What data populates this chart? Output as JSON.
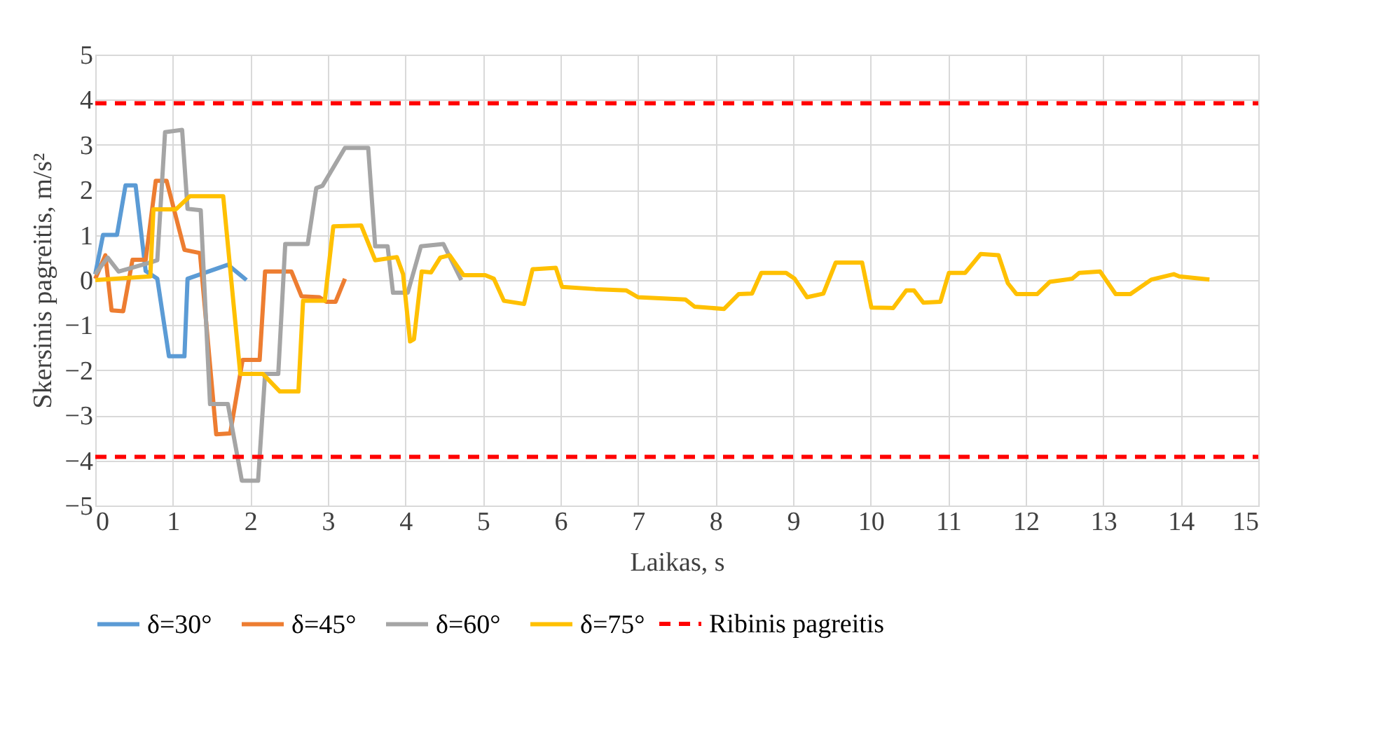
{
  "chart_data": {
    "type": "line",
    "xlabel": "Laikas, s",
    "ylabel": "Skersinis pagreitis, m/s²",
    "xlim": [
      0,
      15
    ],
    "xticks": [
      0,
      1,
      2,
      3,
      4,
      5,
      6,
      7,
      8,
      9,
      10,
      11,
      12,
      13,
      14,
      15
    ],
    "ylim": [
      -5,
      5
    ],
    "yticks": [
      -5,
      -4,
      -3,
      -2,
      -1,
      0,
      1,
      2,
      3,
      4,
      5
    ],
    "grid": true,
    "legend": "bottom",
    "marker": "none",
    "line_style": "solid",
    "series": [
      {
        "name": "δ=30°",
        "color": "#5b9bd5",
        "x": [
          0,
          0.1,
          0.28,
          0.39,
          0.52,
          0.65,
          0.8,
          0.95,
          1.15,
          1.19,
          1.71,
          1.95
        ],
        "values": [
          0.13,
          1.0,
          1.0,
          2.1,
          2.1,
          0.2,
          0.03,
          -1.69,
          -1.69,
          0.03,
          0.34,
          0
        ]
      },
      {
        "name": "δ=45°",
        "color": "#ed7d31",
        "x": [
          0,
          0.13,
          0.21,
          0.36,
          0.48,
          0.65,
          0.78,
          0.92,
          1.15,
          1.35,
          1.56,
          1.74,
          1.9,
          2.12,
          2.19,
          2.53,
          2.66,
          2.89,
          2.98,
          3.1,
          3.22
        ],
        "values": [
          0.03,
          0.55,
          -0.67,
          -0.69,
          0.45,
          0.45,
          2.2,
          2.2,
          0.67,
          0.6,
          -3.42,
          -3.4,
          -1.77,
          -1.77,
          0.19,
          0.19,
          -0.36,
          -0.38,
          -0.48,
          -0.48,
          0.03
        ]
      },
      {
        "name": "δ=60°",
        "color": "#a5a5a5",
        "x": [
          0,
          0.16,
          0.3,
          0.71,
          0.8,
          0.9,
          1.12,
          1.19,
          1.36,
          1.48,
          1.71,
          1.89,
          2.1,
          2.19,
          2.36,
          2.45,
          2.74,
          2.85,
          2.93,
          3.22,
          3.52,
          3.61,
          3.77,
          3.84,
          4.03,
          4.2,
          4.49,
          4.72
        ],
        "values": [
          0.13,
          0.5,
          0.19,
          0.39,
          0.44,
          3.28,
          3.33,
          1.58,
          1.55,
          -2.75,
          -2.75,
          -4.45,
          -4.45,
          -2.08,
          -2.08,
          0.8,
          0.8,
          2.04,
          2.09,
          2.93,
          2.93,
          0.75,
          0.75,
          -0.28,
          -0.28,
          0.75,
          0.8,
          0
        ]
      },
      {
        "name": "δ=75°",
        "color": "#ffc000",
        "x": [
          0,
          0.71,
          0.75,
          1.04,
          1.22,
          1.65,
          1.87,
          2.16,
          2.38,
          2.62,
          2.68,
          2.96,
          3.07,
          3.43,
          3.61,
          3.89,
          3.97,
          4.06,
          4.11,
          4.21,
          4.33,
          4.45,
          4.57,
          4.75,
          5.03,
          5.14,
          5.27,
          5.53,
          5.64,
          5.94,
          6.02,
          6.45,
          6.85,
          7.0,
          7.61,
          7.73,
          8.11,
          8.3,
          8.47,
          8.59,
          8.91,
          9.02,
          9.18,
          9.39,
          9.55,
          9.89,
          10.01,
          10.29,
          10.46,
          10.56,
          10.68,
          10.9,
          11.01,
          11.22,
          11.42,
          11.65,
          11.77,
          11.88,
          12.15,
          12.31,
          12.6,
          12.69,
          12.96,
          13.16,
          13.35,
          13.62,
          13.91,
          13.98,
          14.37
        ],
        "values": [
          0,
          0.08,
          1.57,
          1.57,
          1.86,
          1.86,
          -2.08,
          -2.08,
          -2.47,
          -2.47,
          -0.46,
          -0.46,
          1.19,
          1.21,
          0.44,
          0.51,
          0.13,
          -1.36,
          -1.31,
          0.19,
          0.17,
          0.5,
          0.55,
          0.11,
          0.11,
          0.03,
          -0.46,
          -0.53,
          0.24,
          0.27,
          -0.15,
          -0.2,
          -0.23,
          -0.38,
          -0.43,
          -0.59,
          -0.64,
          -0.31,
          -0.3,
          0.16,
          0.16,
          0.03,
          -0.38,
          -0.3,
          0.39,
          0.39,
          -0.61,
          -0.62,
          -0.23,
          -0.23,
          -0.5,
          -0.48,
          0.16,
          0.16,
          0.58,
          0.55,
          -0.07,
          -0.31,
          -0.31,
          -0.04,
          0.03,
          0.16,
          0.19,
          -0.31,
          -0.31,
          0.01,
          0.13,
          0.08,
          0.01
        ]
      }
    ],
    "ref_lines": [
      {
        "axis": "y",
        "value": 3.92,
        "label": "Ribinis pagreitis",
        "color": "#ff0000",
        "line_style": "dashed"
      },
      {
        "axis": "y",
        "value": -3.92,
        "color": "#ff0000",
        "line_style": "dashed"
      }
    ]
  }
}
